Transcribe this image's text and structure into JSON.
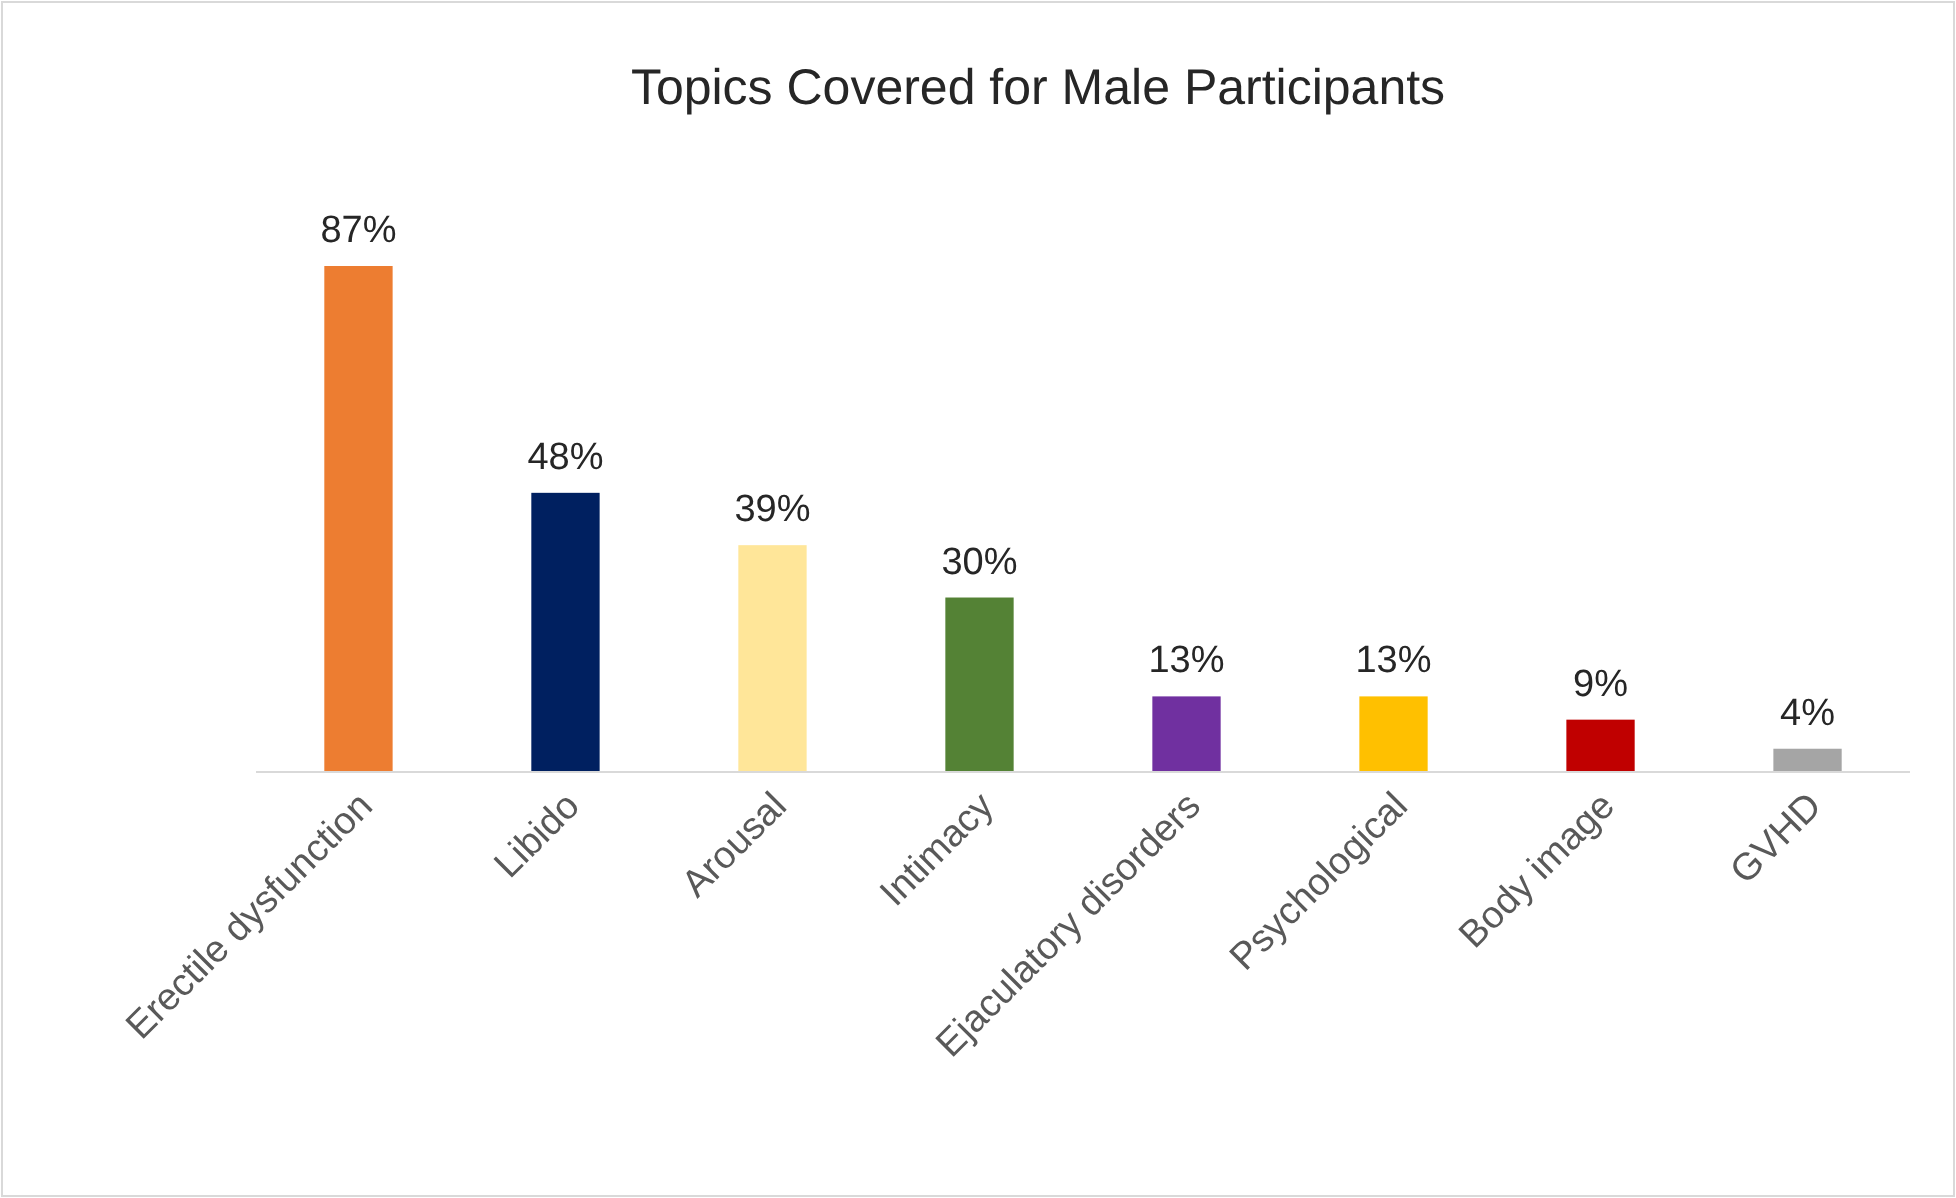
{
  "chart_data": {
    "type": "bar",
    "title": "Topics Covered for Male Participants",
    "categories": [
      "Erectile dysfunction",
      "Libido",
      "Arousal",
      "Intimacy",
      "Ejaculatory disorders",
      "Psychological",
      "Body image",
      "GVHD"
    ],
    "values": [
      87,
      48,
      39,
      30,
      13,
      13,
      9,
      4
    ],
    "colors": [
      "#ed7d31",
      "#002060",
      "#ffe699",
      "#548235",
      "#7030a0",
      "#ffc000",
      "#c00000",
      "#a5a5a5"
    ],
    "value_labels": [
      "87%",
      "48%",
      "39%",
      "30%",
      "13%",
      "13%",
      "9%",
      "4%"
    ]
  }
}
